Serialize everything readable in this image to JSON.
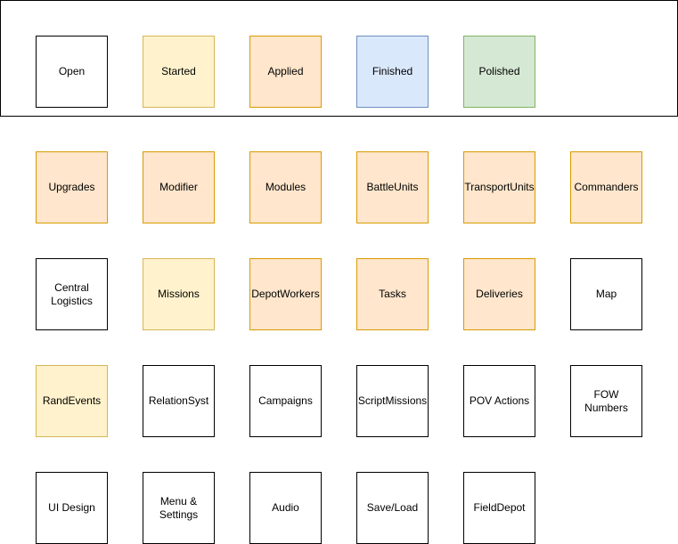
{
  "legend": [
    {
      "label": "Open",
      "status": "open"
    },
    {
      "label": "Started",
      "status": "started"
    },
    {
      "label": "Applied",
      "status": "applied"
    },
    {
      "label": "Finished",
      "status": "finished"
    },
    {
      "label": "Polished",
      "status": "polished"
    }
  ],
  "status_colors": {
    "open": {
      "fill": "#ffffff",
      "stroke": "#000000"
    },
    "started": {
      "fill": "#fff2cc",
      "stroke": "#d6b656"
    },
    "applied": {
      "fill": "#ffe6cc",
      "stroke": "#d79b00"
    },
    "finished": {
      "fill": "#dae8fc",
      "stroke": "#6c8ebf"
    },
    "polished": {
      "fill": "#d5e8d4",
      "stroke": "#82b366"
    }
  },
  "rows": [
    [
      {
        "label": "Upgrades",
        "status": "applied"
      },
      {
        "label": "Modifier",
        "status": "applied"
      },
      {
        "label": "Modules",
        "status": "applied"
      },
      {
        "label": "BattleUnits",
        "status": "applied"
      },
      {
        "label": "TransportUnits",
        "status": "applied"
      },
      {
        "label": "Commanders",
        "status": "applied"
      }
    ],
    [
      {
        "label": "Central\nLogistics",
        "status": "open"
      },
      {
        "label": "Missions",
        "status": "started"
      },
      {
        "label": "DepotWorkers",
        "status": "applied"
      },
      {
        "label": "Tasks",
        "status": "applied"
      },
      {
        "label": "Deliveries",
        "status": "applied"
      },
      {
        "label": "Map",
        "status": "open"
      }
    ],
    [
      {
        "label": "RandEvents",
        "status": "started"
      },
      {
        "label": "RelationSyst",
        "status": "open"
      },
      {
        "label": "Campaigns",
        "status": "open"
      },
      {
        "label": "ScriptMissions",
        "status": "open"
      },
      {
        "label": "POV Actions",
        "status": "open"
      },
      {
        "label": "FOW\nNumbers",
        "status": "open"
      }
    ],
    [
      {
        "label": "UI Design",
        "status": "open"
      },
      {
        "label": "Menu &\nSettings",
        "status": "open"
      },
      {
        "label": "Audio",
        "status": "open"
      },
      {
        "label": "Save/Load",
        "status": "open"
      },
      {
        "label": "FieldDepot",
        "status": "open"
      }
    ]
  ]
}
